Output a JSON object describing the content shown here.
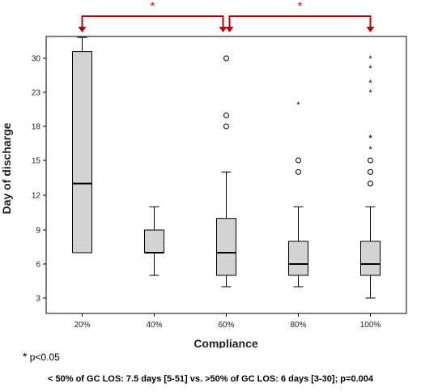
{
  "chart_data": {
    "type": "box",
    "xlabel": "Compliance",
    "ylabel": "Day of discharge",
    "categories": [
      "20%",
      "40%",
      "60%",
      "80%",
      "100%"
    ],
    "y_ticks": [
      3,
      6,
      9,
      12,
      15,
      18,
      23,
      30
    ],
    "ylim": [
      1.5,
      34.3
    ],
    "boxes": [
      {
        "category": "20%",
        "min": 7,
        "q1": 7,
        "median": 13,
        "q3": 31.4,
        "max": 34.3,
        "outliers": [],
        "extremes": []
      },
      {
        "category": "40%",
        "min": 5,
        "q1": 7,
        "median": 7,
        "q3": 9,
        "max": 11,
        "outliers": [],
        "extremes": []
      },
      {
        "category": "60%",
        "min": 4,
        "q1": 5,
        "median": 7,
        "q3": 10,
        "max": 14,
        "outliers": [
          18,
          19.6,
          30
        ],
        "extremes": []
      },
      {
        "category": "80%",
        "min": 4,
        "q1": 5,
        "median": 6,
        "q3": 8,
        "max": 11,
        "outliers": [
          14,
          15
        ],
        "extremes": [
          21.2
        ]
      },
      {
        "category": "100%",
        "min": 3,
        "q1": 5,
        "median": 6,
        "q3": 8,
        "max": 11,
        "outliers": [
          13,
          13,
          14,
          14,
          15
        ],
        "extremes": [
          16,
          17,
          17,
          23,
          25,
          28,
          30
        ]
      }
    ],
    "significance": [
      {
        "from": "20%",
        "to": "60%",
        "label": "*"
      },
      {
        "from": "60%",
        "to": "100%",
        "label": "*"
      }
    ],
    "colors": {
      "box_fill": "#d3d3d3",
      "bracket": "#c00000"
    }
  },
  "footnote": {
    "star": "*",
    "text": " p<0.05"
  },
  "summary": "< 50% of GC LOS: 7.5 days [5-51] vs. >50% of GC LOS: 6 days [3-30]; p=0.004"
}
